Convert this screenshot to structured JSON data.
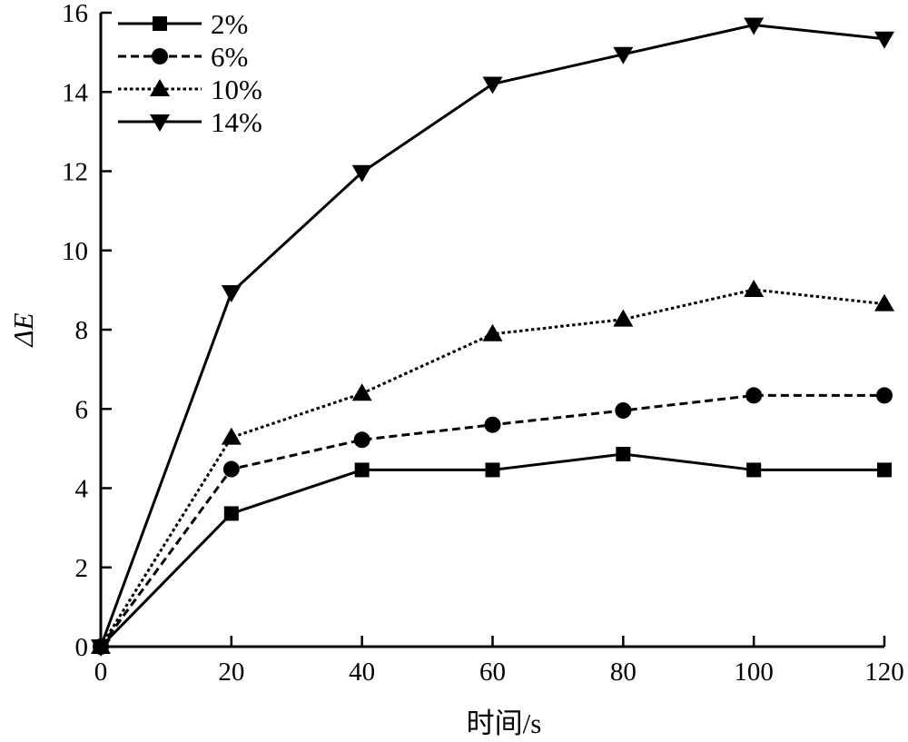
{
  "chart_data": {
    "type": "line",
    "title": "",
    "xlabel": "时间/s",
    "ylabel": "ΔE",
    "xlim": [
      0,
      120
    ],
    "ylim": [
      0,
      16
    ],
    "xticks": [
      0,
      20,
      40,
      60,
      80,
      100,
      120
    ],
    "yticks": [
      0,
      2,
      4,
      6,
      8,
      10,
      12,
      14,
      16
    ],
    "grid": false,
    "legend_position": "top-left",
    "x": [
      0,
      20,
      40,
      60,
      80,
      100,
      120
    ],
    "series": [
      {
        "name": "2%",
        "marker": "square",
        "dash": "solid",
        "values": [
          0,
          3.36,
          4.46,
          4.46,
          4.86,
          4.46,
          4.46
        ]
      },
      {
        "name": "6%",
        "marker": "circle",
        "dash": "dashed",
        "values": [
          0,
          4.48,
          5.22,
          5.6,
          5.96,
          6.34,
          6.34
        ]
      },
      {
        "name": "10%",
        "marker": "triangle-up",
        "dash": "dotted",
        "values": [
          0,
          5.28,
          6.39,
          7.89,
          8.26,
          9.01,
          8.65
        ]
      },
      {
        "name": "14%",
        "marker": "triangle-down",
        "dash": "solid",
        "values": [
          0,
          8.94,
          11.97,
          14.2,
          14.95,
          15.69,
          15.34
        ]
      }
    ],
    "color": "#000000"
  }
}
